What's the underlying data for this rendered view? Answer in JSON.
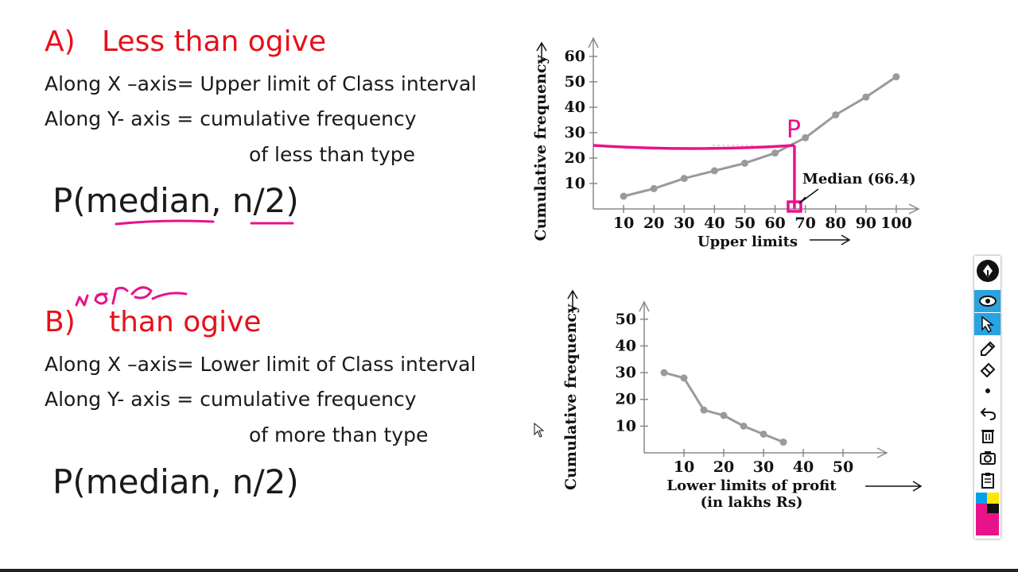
{
  "section_a": {
    "heading_letter": "A)",
    "heading_title": "Less than ogive",
    "line1": "Along X –axis= Upper limit of Class interval",
    "line2": "Along Y- axis = cumulative frequency",
    "line3": "of less than type",
    "formula": "P(median, n/2)"
  },
  "section_b": {
    "heading_letter": "B)",
    "handwritten": "more",
    "heading_title": "than ogive",
    "line1": "Along X –axis= Lower limit of Class interval",
    "line2": "Along Y- axis = cumulative frequency",
    "line3": "of more than type",
    "formula": "P(median, n/2)"
  },
  "annotations": {
    "point_label": "P",
    "median_label": "Median (66.4)"
  },
  "colors": {
    "heading": "#e8101a",
    "ink": "#e8128a",
    "series": "#9a9a9a"
  },
  "chart_data": [
    {
      "type": "line",
      "xlabel": "Upper limits",
      "ylabel": "Cumulative frequency",
      "x_ticks": [
        10,
        20,
        30,
        40,
        50,
        60,
        70,
        80,
        90,
        100
      ],
      "y_ticks": [
        10,
        20,
        30,
        40,
        50,
        60
      ],
      "xlim": [
        0,
        110
      ],
      "ylim": [
        0,
        65
      ],
      "series": [
        {
          "x": [
            10,
            20,
            30,
            40,
            50,
            60,
            70,
            80,
            90,
            100
          ],
          "y": [
            5,
            8,
            12,
            15,
            18,
            22,
            28,
            37,
            44,
            52
          ]
        }
      ],
      "median_x": 66.4,
      "n_half_y": 25
    },
    {
      "type": "line",
      "xlabel": "Lower limits of profit (in lakhs Rs)",
      "xlabel_line1": "Lower limits of profit",
      "xlabel_line2": "(in lakhs Rs)",
      "ylabel": "Cumulative frequency",
      "x_ticks": [
        10,
        20,
        30,
        40,
        50
      ],
      "y_ticks": [
        10,
        20,
        30,
        40,
        50
      ],
      "xlim": [
        0,
        60
      ],
      "ylim": [
        0,
        55
      ],
      "series": [
        {
          "x": [
            5,
            10,
            15,
            20,
            25,
            30,
            35
          ],
          "y": [
            30,
            28,
            16,
            14,
            10,
            7,
            4
          ]
        }
      ]
    }
  ],
  "toolbar": {
    "tools": [
      "pen-logo-icon",
      "eye-icon",
      "pointer-icon",
      "pen-icon",
      "eraser-icon",
      "dot-icon",
      "undo-icon",
      "trash-icon",
      "camera-icon",
      "clipboard-icon",
      "color-palette-icon"
    ]
  }
}
